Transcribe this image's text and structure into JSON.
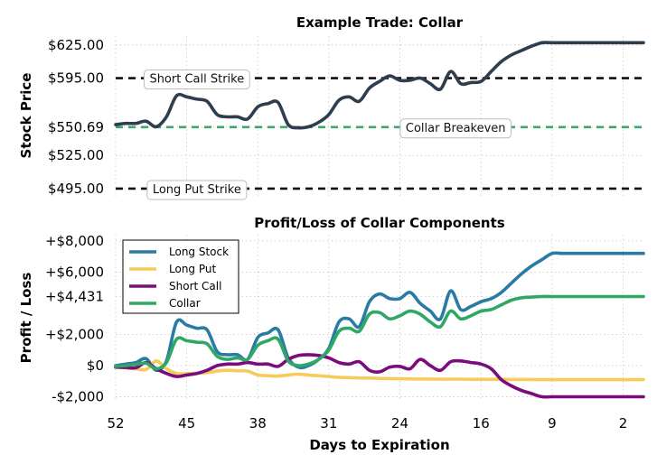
{
  "chart_data": [
    {
      "type": "line",
      "title": "Example Trade: Collar",
      "ylabel": "Stock Price",
      "ylim": [
        486,
        633
      ],
      "yticks": [
        {
          "value": 495,
          "label": "$495.00"
        },
        {
          "value": 525,
          "label": "$525.00"
        },
        {
          "value": 550.69,
          "label": "$550.69"
        },
        {
          "value": 595,
          "label": "$595.00"
        },
        {
          "value": 625,
          "label": "$625.00"
        }
      ],
      "grid": true,
      "hlines": [
        {
          "name": "short-call-strike",
          "value": 595,
          "color": "#111111",
          "style": "dashed",
          "label": "Short Call Strike",
          "label_at_day": 44
        },
        {
          "name": "collar-breakeven",
          "value": 550.69,
          "color": "#3aa86b",
          "style": "dashed",
          "label": "Collar Breakeven",
          "label_at_day": 18.5
        },
        {
          "name": "long-put-strike",
          "value": 495,
          "color": "#111111",
          "style": "dashed",
          "label": "Long Put Strike",
          "label_at_day": 44
        }
      ],
      "series": [
        {
          "key": "stock-price",
          "color": "#2e3e4e",
          "x": [
            52,
            51,
            50,
            49,
            48,
            47,
            46,
            45,
            44,
            43,
            42,
            41,
            40,
            39,
            38,
            37,
            36,
            35,
            34,
            33,
            32,
            31,
            30,
            29,
            28,
            27,
            26,
            25,
            24,
            23,
            22,
            21,
            20,
            19,
            18,
            17,
            16,
            15,
            14,
            13,
            12,
            11,
            10,
            9,
            8,
            7,
            6,
            5,
            4,
            3,
            2,
            1,
            0
          ],
          "values": [
            553,
            554,
            554,
            556,
            551,
            560,
            579,
            578,
            576,
            574,
            562,
            560,
            560,
            558,
            569,
            572,
            573,
            553,
            550,
            551,
            555,
            562,
            575,
            578,
            574,
            586,
            592,
            597,
            593,
            593,
            595,
            590,
            585,
            601,
            590,
            591,
            592,
            601,
            610,
            616,
            620,
            624,
            627,
            627,
            627,
            627,
            627,
            627,
            627,
            627,
            627,
            627,
            627
          ]
        }
      ]
    },
    {
      "type": "line",
      "title": "Profit/Loss of Collar Components",
      "xlabel": "Days to Expiration",
      "ylabel": "Profit / Loss",
      "ylim": [
        -2200,
        8400
      ],
      "xlim": [
        52,
        0
      ],
      "xticks": [
        52,
        45,
        38,
        31,
        24,
        16,
        9,
        2
      ],
      "yticks": [
        {
          "value": -2000,
          "label": "-$2,000"
        },
        {
          "value": 0,
          "label": "$0"
        },
        {
          "value": 2000,
          "label": "+$2,000"
        },
        {
          "value": 4431,
          "label": "+$4,431"
        },
        {
          "value": 6000,
          "label": "+$6,000"
        },
        {
          "value": 8000,
          "label": "+$8,000"
        }
      ],
      "grid": true,
      "legend": "top-left",
      "series": [
        {
          "key": "long-stock",
          "name": "Long Stock",
          "color": "#2a7ba4",
          "x": [
            52,
            51,
            50,
            49,
            48,
            47,
            46,
            45,
            44,
            43,
            42,
            41,
            40,
            39,
            38,
            37,
            36,
            35,
            34,
            33,
            32,
            31,
            30,
            29,
            28,
            27,
            26,
            25,
            24,
            23,
            22,
            21,
            20,
            19,
            18,
            17,
            16,
            15,
            14,
            13,
            12,
            11,
            10,
            9,
            8,
            7,
            6,
            5,
            4,
            3,
            2,
            1,
            0
          ],
          "values": [
            0,
            100,
            200,
            450,
            -300,
            300,
            2800,
            2600,
            2400,
            2300,
            900,
            700,
            700,
            400,
            1800,
            2100,
            2300,
            500,
            -100,
            0,
            400,
            1100,
            2800,
            3000,
            2500,
            4100,
            4600,
            4300,
            4300,
            4700,
            4000,
            3500,
            3000,
            4800,
            3600,
            3800,
            4100,
            4300,
            4700,
            5300,
            5900,
            6400,
            6800,
            7200,
            7200,
            7200,
            7200,
            7200,
            7200,
            7200,
            7200,
            7200,
            7200
          ]
        },
        {
          "key": "long-put",
          "name": "Long Put",
          "color": "#f5cc5a",
          "x": [
            52,
            51,
            50,
            49,
            48,
            47,
            46,
            45,
            44,
            43,
            42,
            41,
            40,
            39,
            38,
            37,
            36,
            35,
            34,
            33,
            32,
            31,
            30,
            29,
            28,
            27,
            26,
            25,
            24,
            23,
            22,
            21,
            20,
            19,
            18,
            17,
            16,
            15,
            14,
            13,
            12,
            11,
            10,
            9,
            8,
            7,
            6,
            5,
            4,
            3,
            2,
            1,
            0
          ],
          "values": [
            -100,
            -150,
            -200,
            -250,
            300,
            -200,
            -500,
            -520,
            -480,
            -450,
            -350,
            -300,
            -330,
            -350,
            -600,
            -650,
            -670,
            -600,
            -550,
            -600,
            -650,
            -700,
            -750,
            -770,
            -790,
            -800,
            -820,
            -830,
            -840,
            -850,
            -860,
            -860,
            -870,
            -870,
            -870,
            -880,
            -880,
            -880,
            -880,
            -890,
            -890,
            -890,
            -900,
            -900,
            -900,
            -900,
            -900,
            -900,
            -900,
            -900,
            -900,
            -900,
            -900
          ]
        },
        {
          "key": "short-call",
          "name": "Short Call",
          "color": "#7a0c7e",
          "x": [
            52,
            51,
            50,
            49,
            48,
            47,
            46,
            45,
            44,
            43,
            42,
            41,
            40,
            39,
            38,
            37,
            36,
            35,
            34,
            33,
            32,
            31,
            30,
            29,
            28,
            27,
            26,
            25,
            24,
            23,
            22,
            21,
            20,
            19,
            18,
            17,
            16,
            15,
            14,
            13,
            12,
            11,
            10,
            9,
            8,
            7,
            6,
            5,
            4,
            3,
            2,
            1,
            0
          ],
          "values": [
            -100,
            -120,
            -140,
            200,
            -200,
            -500,
            -700,
            -600,
            -500,
            -300,
            0,
            100,
            100,
            200,
            100,
            100,
            -50,
            400,
            650,
            700,
            650,
            500,
            200,
            100,
            250,
            -300,
            -400,
            -100,
            -50,
            -200,
            400,
            0,
            -300,
            250,
            300,
            200,
            100,
            -200,
            -900,
            -1300,
            -1600,
            -1800,
            -2000,
            -2000,
            -2000,
            -2000,
            -2000,
            -2000,
            -2000,
            -2000,
            -2000,
            -2000,
            -2000
          ]
        },
        {
          "key": "collar",
          "name": "Collar",
          "color": "#2fa866",
          "x": [
            52,
            51,
            50,
            49,
            48,
            47,
            46,
            45,
            44,
            43,
            42,
            41,
            40,
            39,
            38,
            37,
            36,
            35,
            34,
            33,
            32,
            31,
            30,
            29,
            28,
            27,
            26,
            25,
            24,
            23,
            22,
            21,
            20,
            19,
            18,
            17,
            16,
            15,
            14,
            13,
            12,
            11,
            10,
            9,
            8,
            7,
            6,
            5,
            4,
            3,
            2,
            1,
            0
          ],
          "values": [
            -50,
            0,
            80,
            150,
            -200,
            200,
            1700,
            1600,
            1500,
            1400,
            600,
            400,
            500,
            400,
            1300,
            1600,
            1700,
            300,
            0,
            100,
            400,
            1000,
            2200,
            2400,
            2200,
            3300,
            3400,
            3000,
            3200,
            3500,
            3300,
            2800,
            2500,
            3500,
            3000,
            3200,
            3500,
            3600,
            3900,
            4200,
            4350,
            4400,
            4431,
            4431,
            4431,
            4431,
            4431,
            4431,
            4431,
            4431,
            4431,
            4431,
            4431
          ]
        }
      ]
    }
  ]
}
